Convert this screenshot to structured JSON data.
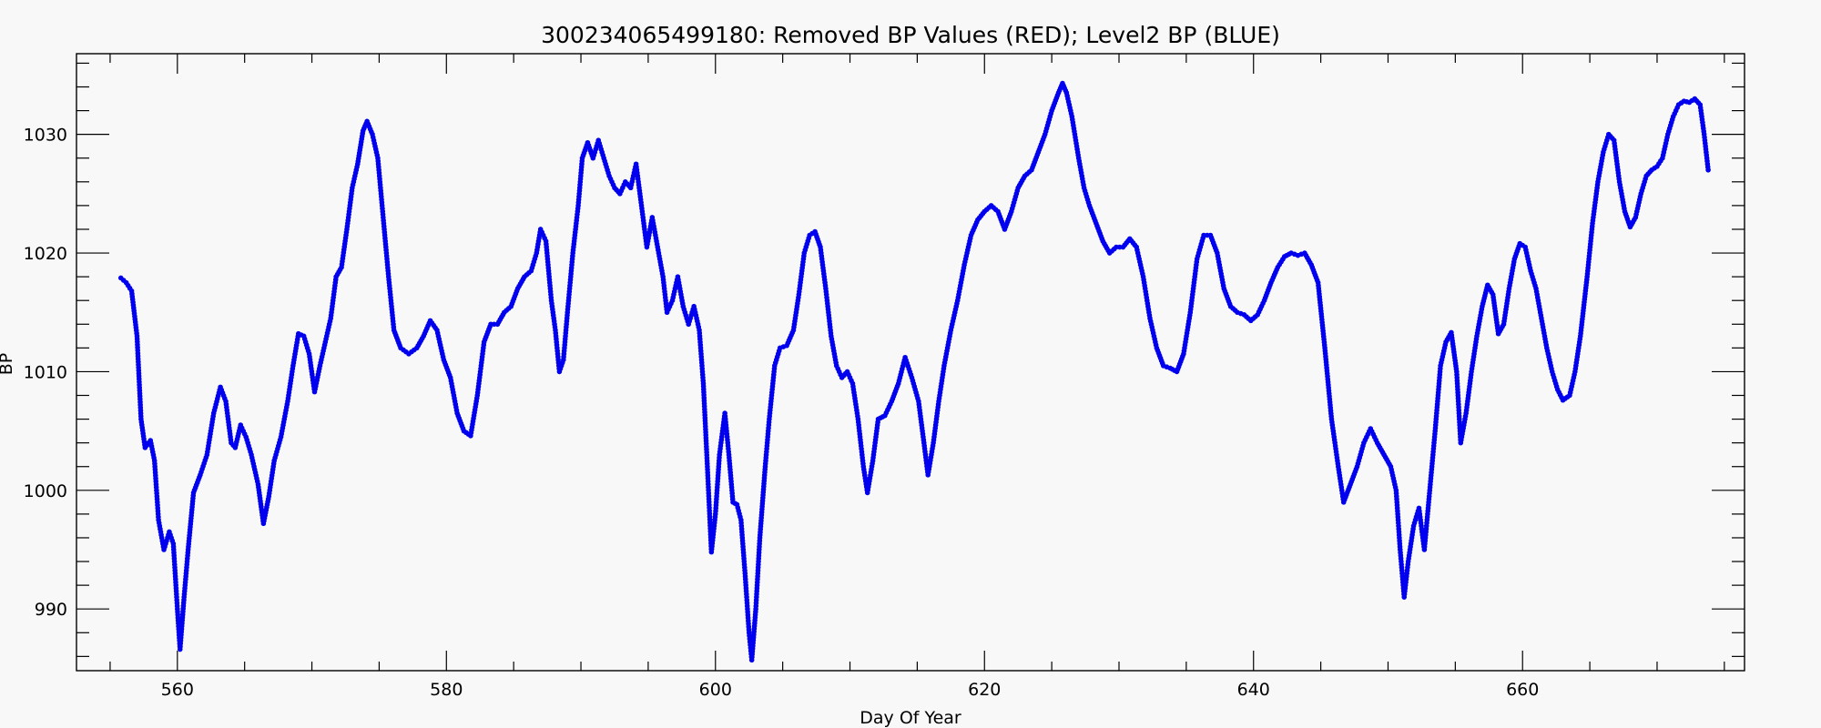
{
  "chart_data": {
    "type": "scatter",
    "title": "300234065499180: Removed BP Values (RED); Level2 BP (BLUE)",
    "xlabel": "Day Of Year",
    "ylabel": "BP",
    "xlim": [
      552.5,
      676.5
    ],
    "ylim": [
      984.8,
      1036.8
    ],
    "x_ticks": [
      560,
      580,
      600,
      620,
      640,
      660
    ],
    "y_ticks": [
      990,
      1000,
      1010,
      1020,
      1030
    ],
    "grid": false,
    "legend": "none",
    "series": [
      {
        "color": "#0000ee",
        "marker": "dot",
        "points": [
          [
            555.8,
            1017.9
          ],
          [
            556.2,
            1017.5
          ],
          [
            556.6,
            1016.8
          ],
          [
            557.0,
            1013.0
          ],
          [
            557.3,
            1006.0
          ],
          [
            557.6,
            1003.6
          ],
          [
            558.0,
            1004.2
          ],
          [
            558.3,
            1002.5
          ],
          [
            558.6,
            997.5
          ],
          [
            559.0,
            995.0
          ],
          [
            559.4,
            996.5
          ],
          [
            559.7,
            995.5
          ],
          [
            560.0,
            990.0
          ],
          [
            560.2,
            986.6
          ],
          [
            560.5,
            991.0
          ],
          [
            560.8,
            995.0
          ],
          [
            561.2,
            999.8
          ],
          [
            561.7,
            1001.3
          ],
          [
            562.2,
            1003.0
          ],
          [
            562.7,
            1006.5
          ],
          [
            563.2,
            1008.7
          ],
          [
            563.6,
            1007.5
          ],
          [
            564.0,
            1004.0
          ],
          [
            564.3,
            1003.6
          ],
          [
            564.7,
            1005.5
          ],
          [
            565.1,
            1004.5
          ],
          [
            565.5,
            1003.0
          ],
          [
            566.0,
            1000.5
          ],
          [
            566.4,
            997.2
          ],
          [
            566.8,
            999.5
          ],
          [
            567.2,
            1002.5
          ],
          [
            567.7,
            1004.5
          ],
          [
            568.2,
            1007.5
          ],
          [
            568.6,
            1010.5
          ],
          [
            569.0,
            1013.2
          ],
          [
            569.4,
            1013.0
          ],
          [
            569.8,
            1011.5
          ],
          [
            570.2,
            1008.3
          ],
          [
            570.6,
            1010.5
          ],
          [
            571.0,
            1012.5
          ],
          [
            571.4,
            1014.5
          ],
          [
            571.8,
            1018.0
          ],
          [
            572.2,
            1018.8
          ],
          [
            572.6,
            1022.0
          ],
          [
            573.0,
            1025.5
          ],
          [
            573.4,
            1027.5
          ],
          [
            573.8,
            1030.3
          ],
          [
            574.1,
            1031.1
          ],
          [
            574.5,
            1030.0
          ],
          [
            574.9,
            1028.0
          ],
          [
            575.3,
            1023.0
          ],
          [
            575.7,
            1018.0
          ],
          [
            576.1,
            1013.5
          ],
          [
            576.6,
            1012.0
          ],
          [
            577.2,
            1011.5
          ],
          [
            577.8,
            1012.0
          ],
          [
            578.3,
            1013.0
          ],
          [
            578.8,
            1014.3
          ],
          [
            579.3,
            1013.5
          ],
          [
            579.8,
            1011.0
          ],
          [
            580.3,
            1009.5
          ],
          [
            580.8,
            1006.5
          ],
          [
            581.3,
            1005.0
          ],
          [
            581.8,
            1004.6
          ],
          [
            582.3,
            1008.0
          ],
          [
            582.8,
            1012.5
          ],
          [
            583.3,
            1014.0
          ],
          [
            583.8,
            1014.0
          ],
          [
            584.3,
            1015.0
          ],
          [
            584.8,
            1015.5
          ],
          [
            585.3,
            1017.0
          ],
          [
            585.8,
            1018.0
          ],
          [
            586.3,
            1018.5
          ],
          [
            586.7,
            1020.0
          ],
          [
            587.0,
            1022.0
          ],
          [
            587.4,
            1021.0
          ],
          [
            587.8,
            1016.0
          ],
          [
            588.1,
            1013.5
          ],
          [
            588.4,
            1010.0
          ],
          [
            588.7,
            1011.0
          ],
          [
            589.0,
            1015.0
          ],
          [
            589.4,
            1020.0
          ],
          [
            589.8,
            1024.0
          ],
          [
            590.1,
            1028.0
          ],
          [
            590.5,
            1029.3
          ],
          [
            590.9,
            1028.0
          ],
          [
            591.3,
            1029.5
          ],
          [
            591.7,
            1028.0
          ],
          [
            592.1,
            1026.5
          ],
          [
            592.5,
            1025.5
          ],
          [
            592.9,
            1025.0
          ],
          [
            593.3,
            1026.0
          ],
          [
            593.7,
            1025.5
          ],
          [
            594.1,
            1027.5
          ],
          [
            594.5,
            1024.0
          ],
          [
            594.9,
            1020.5
          ],
          [
            595.3,
            1023.0
          ],
          [
            595.7,
            1020.5
          ],
          [
            596.1,
            1018.0
          ],
          [
            596.4,
            1015.0
          ],
          [
            596.8,
            1016.0
          ],
          [
            597.2,
            1018.0
          ],
          [
            597.6,
            1015.5
          ],
          [
            598.0,
            1014.0
          ],
          [
            598.4,
            1015.5
          ],
          [
            598.8,
            1013.5
          ],
          [
            599.1,
            1009.0
          ],
          [
            599.4,
            1002.0
          ],
          [
            599.7,
            994.8
          ],
          [
            600.0,
            998.0
          ],
          [
            600.3,
            1003.0
          ],
          [
            600.7,
            1006.5
          ],
          [
            601.0,
            1003.0
          ],
          [
            601.3,
            999.0
          ],
          [
            601.6,
            998.8
          ],
          [
            601.9,
            997.5
          ],
          [
            602.2,
            993.0
          ],
          [
            602.5,
            988.0
          ],
          [
            602.7,
            985.7
          ],
          [
            603.0,
            990.0
          ],
          [
            603.3,
            996.0
          ],
          [
            603.7,
            1002.0
          ],
          [
            604.0,
            1006.0
          ],
          [
            604.4,
            1010.5
          ],
          [
            604.8,
            1012.0
          ],
          [
            605.3,
            1012.2
          ],
          [
            605.8,
            1013.5
          ],
          [
            606.2,
            1016.5
          ],
          [
            606.6,
            1020.0
          ],
          [
            607.0,
            1021.5
          ],
          [
            607.4,
            1021.8
          ],
          [
            607.8,
            1020.5
          ],
          [
            608.2,
            1017.0
          ],
          [
            608.6,
            1013.0
          ],
          [
            609.0,
            1010.5
          ],
          [
            609.4,
            1009.5
          ],
          [
            609.8,
            1010.0
          ],
          [
            610.2,
            1009.0
          ],
          [
            610.6,
            1006.0
          ],
          [
            611.0,
            1002.0
          ],
          [
            611.3,
            999.8
          ],
          [
            611.7,
            1002.5
          ],
          [
            612.1,
            1006.0
          ],
          [
            612.6,
            1006.3
          ],
          [
            613.1,
            1007.5
          ],
          [
            613.6,
            1009.0
          ],
          [
            614.1,
            1011.2
          ],
          [
            614.6,
            1009.5
          ],
          [
            615.1,
            1007.5
          ],
          [
            615.5,
            1004.0
          ],
          [
            615.8,
            1001.3
          ],
          [
            616.2,
            1004.0
          ],
          [
            616.6,
            1007.5
          ],
          [
            617.0,
            1010.5
          ],
          [
            617.5,
            1013.5
          ],
          [
            618.0,
            1016.0
          ],
          [
            618.5,
            1019.0
          ],
          [
            619.0,
            1021.5
          ],
          [
            619.5,
            1022.8
          ],
          [
            620.0,
            1023.5
          ],
          [
            620.5,
            1024.0
          ],
          [
            621.0,
            1023.5
          ],
          [
            621.5,
            1022.0
          ],
          [
            622.0,
            1023.5
          ],
          [
            622.5,
            1025.5
          ],
          [
            623.0,
            1026.5
          ],
          [
            623.5,
            1027.0
          ],
          [
            624.0,
            1028.5
          ],
          [
            624.5,
            1030.0
          ],
          [
            625.0,
            1032.0
          ],
          [
            625.5,
            1033.5
          ],
          [
            625.8,
            1034.3
          ],
          [
            626.1,
            1033.5
          ],
          [
            626.5,
            1031.5
          ],
          [
            627.0,
            1028.0
          ],
          [
            627.4,
            1025.5
          ],
          [
            627.8,
            1024.0
          ],
          [
            628.3,
            1022.5
          ],
          [
            628.8,
            1021.0
          ],
          [
            629.3,
            1020.0
          ],
          [
            629.8,
            1020.5
          ],
          [
            630.3,
            1020.5
          ],
          [
            630.8,
            1021.2
          ],
          [
            631.3,
            1020.5
          ],
          [
            631.8,
            1018.0
          ],
          [
            632.3,
            1014.5
          ],
          [
            632.8,
            1012.0
          ],
          [
            633.3,
            1010.5
          ],
          [
            633.8,
            1010.3
          ],
          [
            634.3,
            1010.0
          ],
          [
            634.8,
            1011.5
          ],
          [
            635.3,
            1015.0
          ],
          [
            635.8,
            1019.5
          ],
          [
            636.3,
            1021.5
          ],
          [
            636.8,
            1021.5
          ],
          [
            637.3,
            1020.0
          ],
          [
            637.8,
            1017.0
          ],
          [
            638.3,
            1015.5
          ],
          [
            638.8,
            1015.0
          ],
          [
            639.3,
            1014.8
          ],
          [
            639.8,
            1014.3
          ],
          [
            640.3,
            1014.8
          ],
          [
            640.8,
            1016.0
          ],
          [
            641.3,
            1017.5
          ],
          [
            641.8,
            1018.8
          ],
          [
            642.3,
            1019.7
          ],
          [
            642.8,
            1020.0
          ],
          [
            643.3,
            1019.8
          ],
          [
            643.8,
            1020.0
          ],
          [
            644.3,
            1019.0
          ],
          [
            644.8,
            1017.5
          ],
          [
            645.3,
            1012.0
          ],
          [
            645.8,
            1006.0
          ],
          [
            646.3,
            1002.0
          ],
          [
            646.7,
            999.0
          ],
          [
            647.2,
            1000.5
          ],
          [
            647.7,
            1002.0
          ],
          [
            648.2,
            1004.0
          ],
          [
            648.7,
            1005.2
          ],
          [
            649.2,
            1004.0
          ],
          [
            649.7,
            1003.0
          ],
          [
            650.2,
            1002.0
          ],
          [
            650.6,
            1000.0
          ],
          [
            650.9,
            995.0
          ],
          [
            651.2,
            991.0
          ],
          [
            651.5,
            994.0
          ],
          [
            651.9,
            997.0
          ],
          [
            652.3,
            998.5
          ],
          [
            652.7,
            995.0
          ],
          [
            653.1,
            1000.0
          ],
          [
            653.5,
            1005.0
          ],
          [
            653.9,
            1010.5
          ],
          [
            654.3,
            1012.5
          ],
          [
            654.7,
            1013.3
          ],
          [
            655.1,
            1010.0
          ],
          [
            655.4,
            1004.0
          ],
          [
            655.8,
            1006.5
          ],
          [
            656.2,
            1010.0
          ],
          [
            656.6,
            1013.0
          ],
          [
            657.0,
            1015.5
          ],
          [
            657.4,
            1017.3
          ],
          [
            657.8,
            1016.5
          ],
          [
            658.2,
            1013.2
          ],
          [
            658.6,
            1014.0
          ],
          [
            659.0,
            1017.0
          ],
          [
            659.4,
            1019.5
          ],
          [
            659.8,
            1020.8
          ],
          [
            660.2,
            1020.5
          ],
          [
            660.6,
            1018.5
          ],
          [
            661.0,
            1017.0
          ],
          [
            661.4,
            1014.5
          ],
          [
            661.8,
            1012.0
          ],
          [
            662.2,
            1010.0
          ],
          [
            662.6,
            1008.5
          ],
          [
            663.0,
            1007.6
          ],
          [
            663.5,
            1008.0
          ],
          [
            663.9,
            1010.0
          ],
          [
            664.3,
            1013.0
          ],
          [
            664.8,
            1018.0
          ],
          [
            665.2,
            1022.5
          ],
          [
            665.6,
            1026.0
          ],
          [
            666.0,
            1028.5
          ],
          [
            666.4,
            1030.0
          ],
          [
            666.8,
            1029.5
          ],
          [
            667.2,
            1026.0
          ],
          [
            667.6,
            1023.5
          ],
          [
            668.0,
            1022.2
          ],
          [
            668.4,
            1023.0
          ],
          [
            668.8,
            1025.0
          ],
          [
            669.2,
            1026.5
          ],
          [
            669.6,
            1027.0
          ],
          [
            670.0,
            1027.3
          ],
          [
            670.4,
            1028.0
          ],
          [
            670.8,
            1030.0
          ],
          [
            671.2,
            1031.5
          ],
          [
            671.6,
            1032.5
          ],
          [
            672.0,
            1032.8
          ],
          [
            672.4,
            1032.7
          ],
          [
            672.8,
            1033.0
          ],
          [
            673.2,
            1032.5
          ],
          [
            673.5,
            1030.0
          ],
          [
            673.8,
            1027.0
          ]
        ]
      }
    ]
  }
}
